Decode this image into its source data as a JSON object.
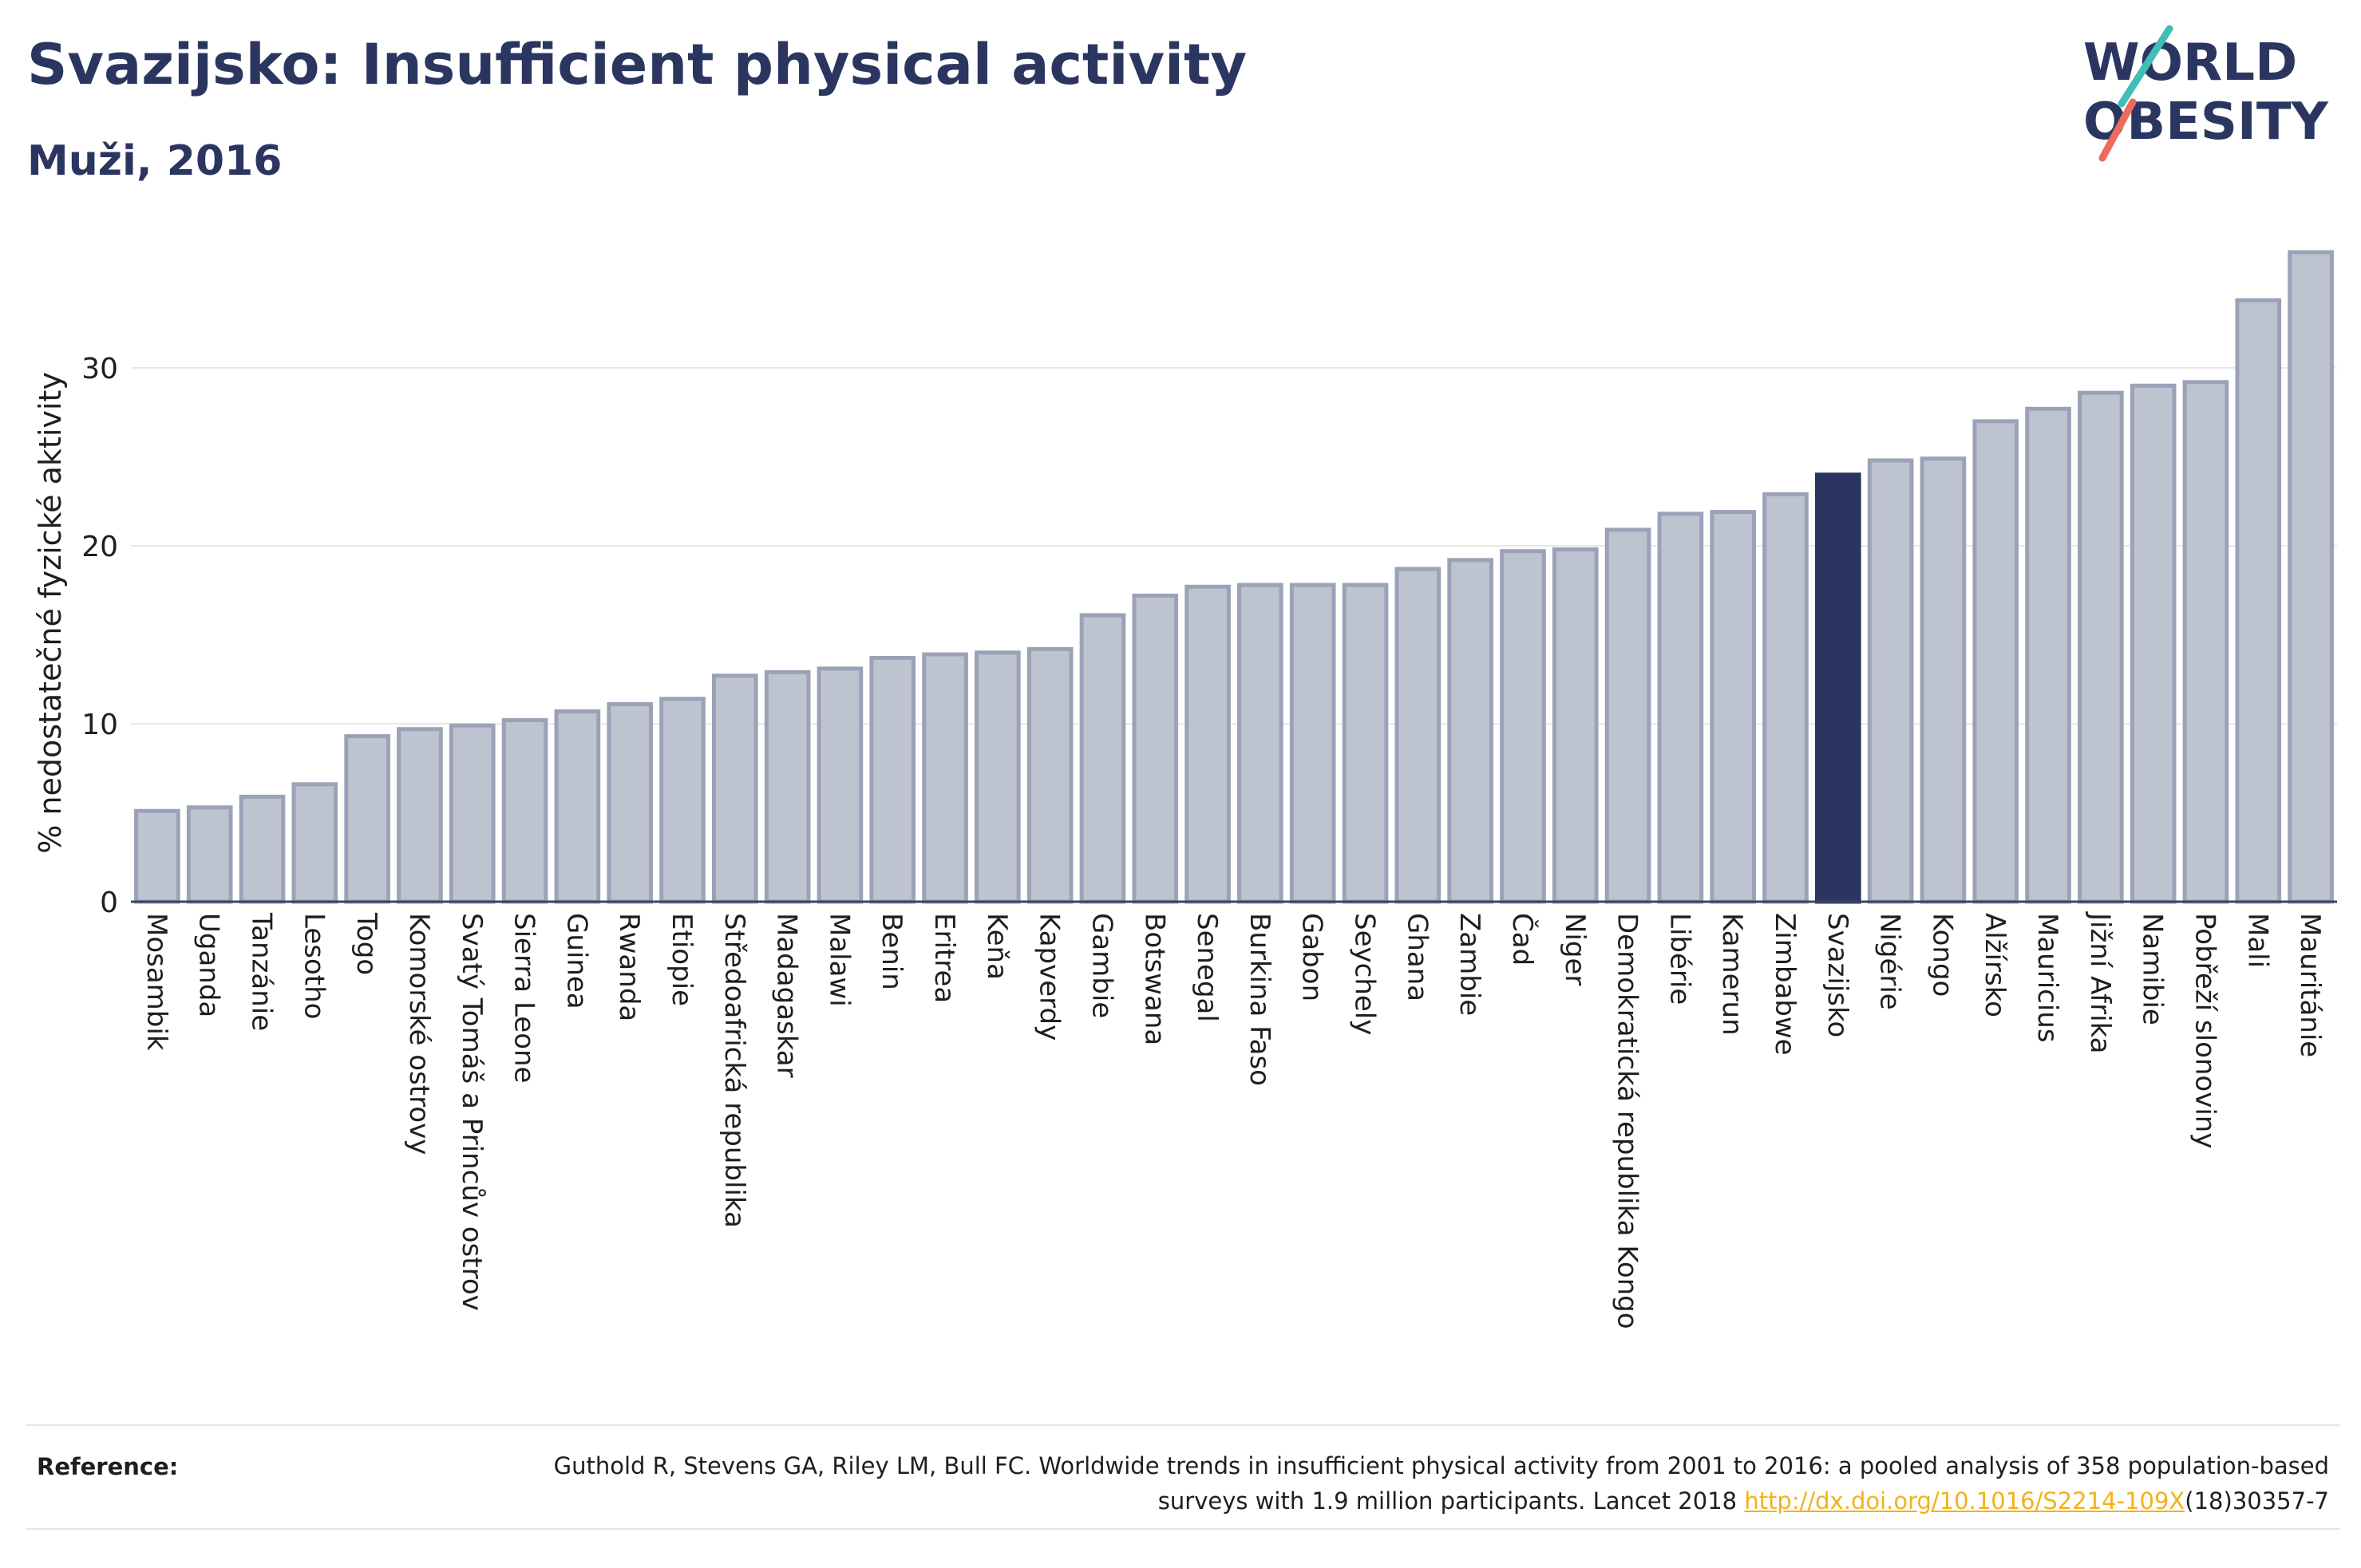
{
  "header": {
    "title": "Svazijsko: Insufficient physical activity",
    "subtitle": "Muži, 2016"
  },
  "logo": {
    "line1": "WORLD",
    "line2": "OBESITY"
  },
  "colors": {
    "bar": "#bec3d0",
    "bar_stroke": "#9ba2b8",
    "highlight": "#2b3660",
    "grid": "#e8e8e8",
    "text": "#1e1e1e",
    "link": "#f2b21b",
    "logo_teal": "#3fbfb5",
    "logo_coral": "#ee6a5a"
  },
  "chart_data": {
    "type": "bar",
    "ylabel": "% nedostatečné fyzické aktivity",
    "ylim": [
      0,
      38
    ],
    "yticks": [
      0,
      10,
      20,
      30
    ],
    "grid": true,
    "highlight": "Svazijsko",
    "categories": [
      "Mosambik",
      "Uganda",
      "Tanzánie",
      "Lesotho",
      "Togo",
      "Komorské ostrovy",
      "Svatý Tomáš a Princův ostrov",
      "Sierra Leone",
      "Guinea",
      "Rwanda",
      "Etiopie",
      "Středoafrická republika",
      "Madagaskar",
      "Malawi",
      "Benin",
      "Eritrea",
      "Keňa",
      "Kapverdy",
      "Gambie",
      "Botswana",
      "Senegal",
      "Burkina Faso",
      "Gabon",
      "Seychely",
      "Ghana",
      "Zambie",
      "Čad",
      "Niger",
      "Demokratická republika Kongo",
      "Libérie",
      "Kamerun",
      "Zimbabwe",
      "Svazijsko",
      "Nigérie",
      "Kongo",
      "Alžírsko",
      "Mauricius",
      "Jižní Afrika",
      "Namibie",
      "Pobřeží slonoviny",
      "Mali",
      "Mauritánie"
    ],
    "values": [
      5.1,
      5.3,
      5.9,
      6.6,
      9.3,
      9.7,
      9.9,
      10.2,
      10.7,
      11.1,
      11.4,
      12.7,
      12.9,
      13.1,
      13.7,
      13.9,
      14.0,
      14.2,
      16.1,
      17.2,
      17.7,
      17.8,
      17.8,
      17.8,
      18.7,
      19.2,
      19.7,
      19.8,
      20.9,
      21.8,
      21.9,
      22.9,
      24.0,
      24.8,
      24.9,
      27.0,
      27.7,
      28.6,
      29.0,
      29.2,
      33.8,
      36.5
    ]
  },
  "reference": {
    "label": "Reference:",
    "text_before": "Guthold R, Stevens GA, Riley LM, Bull FC. Worldwide trends in insufficient physical activity from 2001 to 2016: a pooled analysis of 358 population-based surveys with 1.9 million participants. Lancet 2018 ",
    "link": "http://dx.doi.org/10.1016/S2214-109X",
    "text_after": "(18)30357-7"
  }
}
